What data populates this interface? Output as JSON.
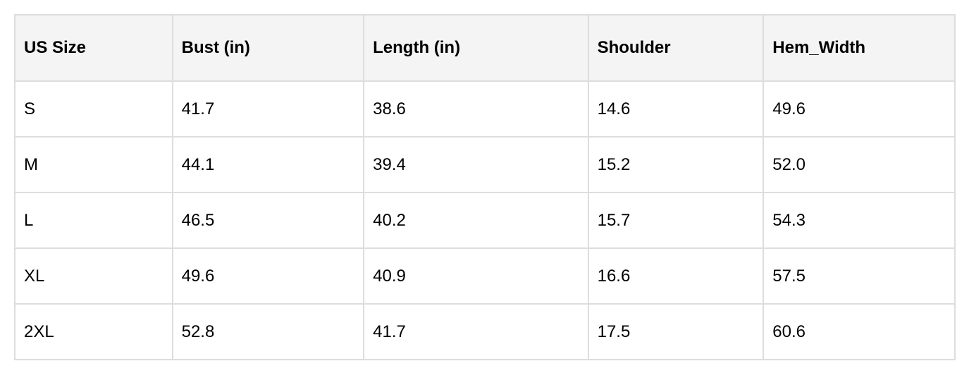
{
  "table": {
    "header": [
      "US Size",
      "Bust (in)",
      "Length (in)",
      "Shoulder",
      "Hem_Width"
    ],
    "rows": [
      [
        "S",
        "41.7",
        "38.6",
        "14.6",
        "49.6"
      ],
      [
        "M",
        "44.1",
        "39.4",
        "15.2",
        "52.0"
      ],
      [
        "L",
        "46.5",
        "40.2",
        "15.7",
        "54.3"
      ],
      [
        "XL",
        "49.6",
        "40.9",
        "16.6",
        "57.5"
      ],
      [
        "2XL",
        "52.8",
        "41.7",
        "17.5",
        "60.6"
      ]
    ]
  }
}
